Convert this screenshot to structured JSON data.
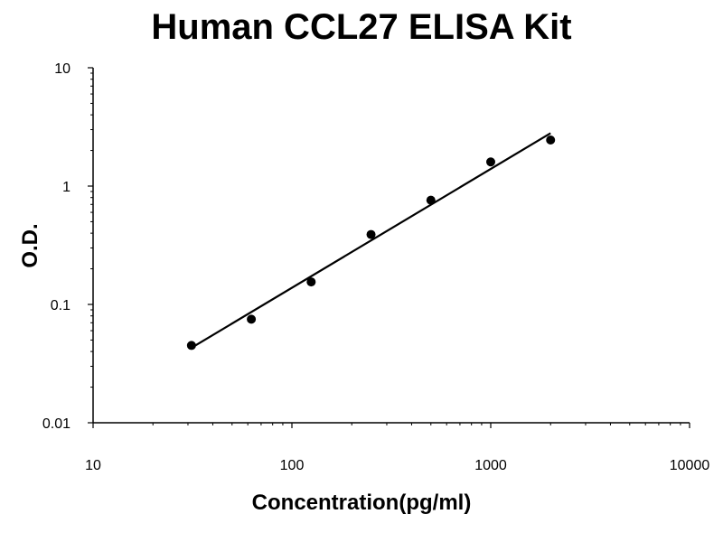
{
  "chart_data": {
    "type": "scatter",
    "title": "Human CCL27 ELISA Kit",
    "xlabel": "Concentration(pg/ml)",
    "ylabel": "O.D.",
    "x_scale": "log",
    "y_scale": "log",
    "xlim": [
      10,
      10000
    ],
    "ylim": [
      0.01,
      10
    ],
    "x_ticks": [
      "10",
      "100",
      "1000",
      "10000"
    ],
    "y_ticks": [
      "0.01",
      "0.1",
      "1",
      "10"
    ],
    "grid": false,
    "legend": "none",
    "series": [
      {
        "x": [
          31.25,
          62.5,
          125,
          250,
          500,
          1000,
          2000
        ],
        "y": [
          0.045,
          0.075,
          0.155,
          0.39,
          0.76,
          1.6,
          2.45
        ]
      }
    ],
    "fit_line": {
      "x": [
        31.25,
        2000
      ],
      "y": [
        0.043,
        2.8
      ]
    },
    "colors": {
      "points": "#000000",
      "line": "#000000",
      "axes": "#000000"
    }
  }
}
